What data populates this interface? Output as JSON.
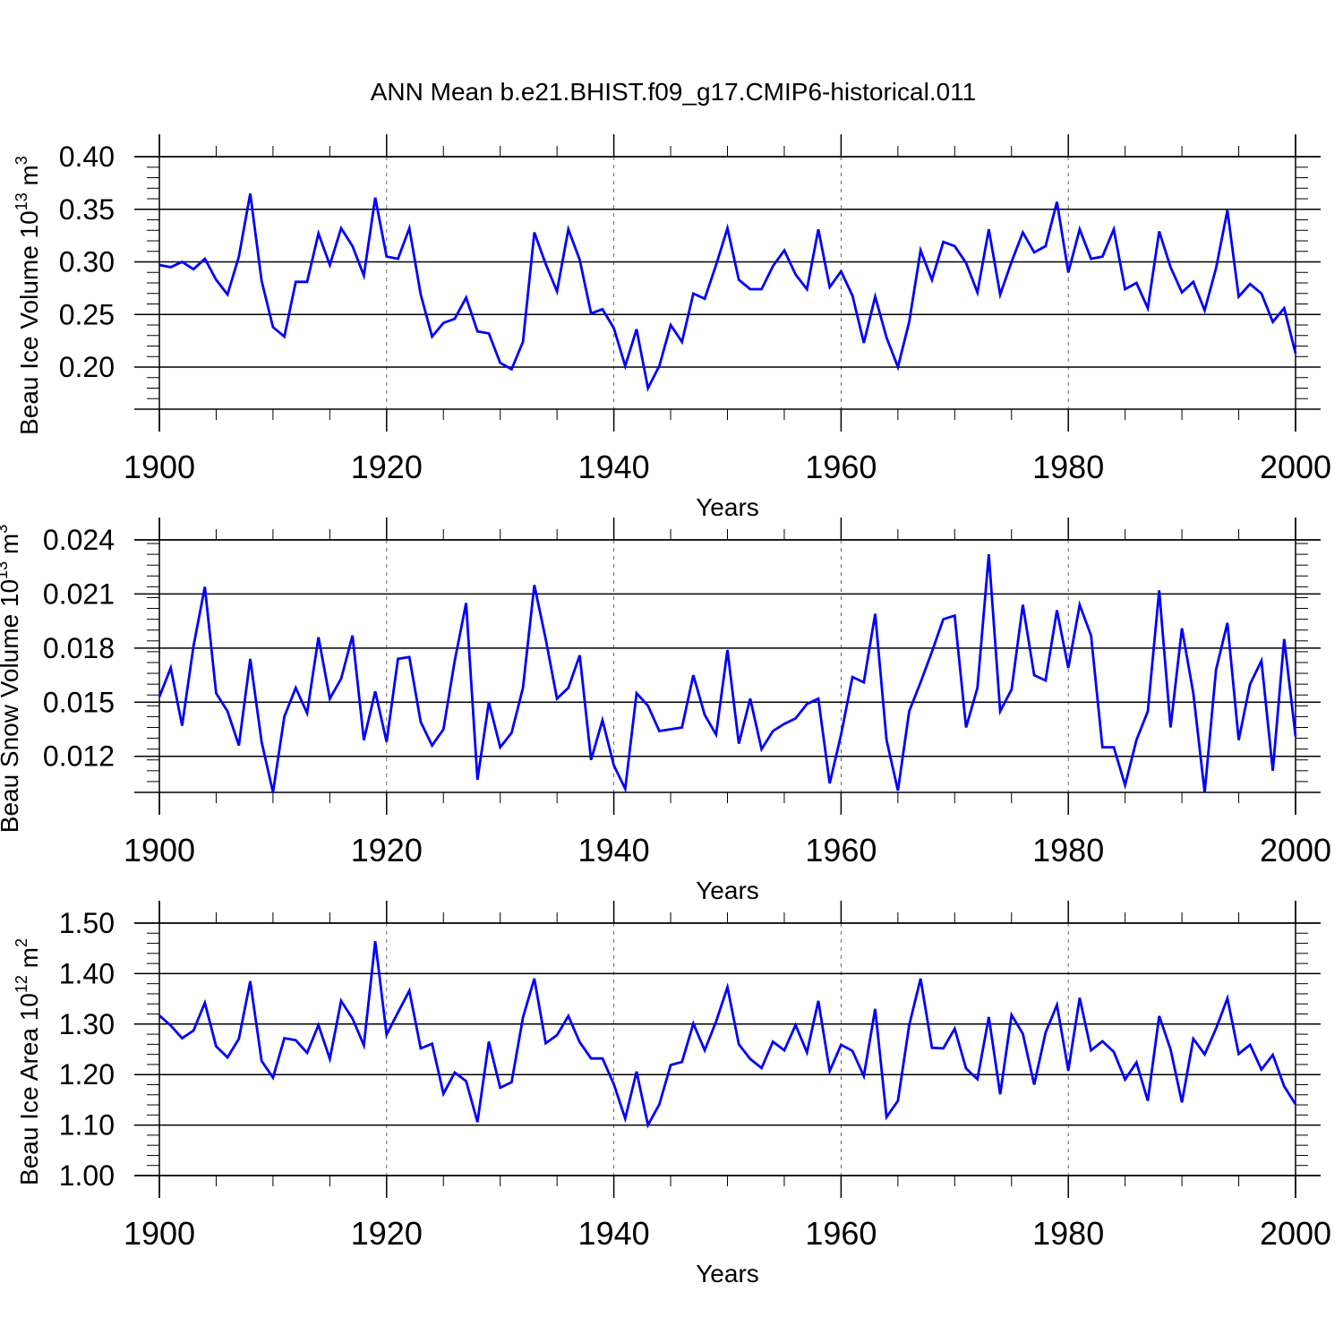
{
  "title": "ANN Mean b.e21.BHIST.f09_g17.CMIP6-historical.011",
  "chart_data": [
    {
      "type": "line",
      "xlabel": "Years",
      "ylabel": {
        "text": "Beau Ice Volume",
        "base": "10",
        "exponent": "13",
        "unit": "m",
        "unit_exponent": "3"
      },
      "x_range": [
        1900,
        2000
      ],
      "ylim": [
        0.16,
        0.4
      ],
      "x_ticks": [
        "1900",
        "1920",
        "1940",
        "1960",
        "1980",
        "2000"
      ],
      "y_ticks": [
        "0.40",
        "0.35",
        "0.30",
        "0.25",
        "0.20"
      ],
      "grid": "dashed vertical at 1920, 1940, 1960, 1980",
      "series_color": "#0000ff",
      "x_start": 1900,
      "values": [
        0.297,
        0.295,
        0.3,
        0.293,
        0.303,
        0.283,
        0.269,
        0.305,
        0.365,
        0.282,
        0.238,
        0.229,
        0.281,
        0.281,
        0.327,
        0.297,
        0.332,
        0.315,
        0.287,
        0.361,
        0.305,
        0.303,
        0.332,
        0.269,
        0.229,
        0.242,
        0.246,
        0.266,
        0.234,
        0.232,
        0.204,
        0.198,
        0.224,
        0.328,
        0.298,
        0.272,
        0.331,
        0.302,
        0.251,
        0.255,
        0.237,
        0.201,
        0.236,
        0.18,
        0.201,
        0.24,
        0.224,
        0.27,
        0.265,
        0.297,
        0.332,
        0.283,
        0.274,
        0.274,
        0.296,
        0.311,
        0.288,
        0.274,
        0.331,
        0.276,
        0.291,
        0.268,
        0.223,
        0.267,
        0.228,
        0.2,
        0.243,
        0.311,
        0.283,
        0.319,
        0.315,
        0.299,
        0.271,
        0.331,
        0.269,
        0.3,
        0.328,
        0.309,
        0.315,
        0.357,
        0.29,
        0.331,
        0.303,
        0.305,
        0.331,
        0.274,
        0.28,
        0.256,
        0.329,
        0.295,
        0.271,
        0.281,
        0.254,
        0.294,
        0.349,
        0.267,
        0.279,
        0.27,
        0.243,
        0.256,
        0.213
      ]
    },
    {
      "type": "line",
      "xlabel": "Years",
      "ylabel": {
        "text": "Beau Snow Volume",
        "base": "10",
        "exponent": "13",
        "unit": "m",
        "unit_exponent": "3"
      },
      "x_range": [
        1900,
        2000
      ],
      "ylim": [
        0.01,
        0.024
      ],
      "x_ticks": [
        "1900",
        "1920",
        "1940",
        "1960",
        "1980",
        "2000"
      ],
      "y_ticks": [
        "0.024",
        "0.021",
        "0.018",
        "0.015",
        "0.012"
      ],
      "grid": "dashed vertical at 1920, 1940, 1960, 1980",
      "series_color": "#0000ff",
      "x_start": 1900,
      "values": [
        0.0153,
        0.0169,
        0.0137,
        0.0181,
        0.0214,
        0.0155,
        0.0145,
        0.0126,
        0.0174,
        0.0128,
        0.01,
        0.0142,
        0.0158,
        0.0144,
        0.0186,
        0.0152,
        0.0163,
        0.0187,
        0.0129,
        0.0156,
        0.0128,
        0.0174,
        0.0175,
        0.0139,
        0.0126,
        0.0135,
        0.0173,
        0.0205,
        0.0107,
        0.015,
        0.0125,
        0.0133,
        0.0158,
        0.0215,
        0.0185,
        0.0152,
        0.0158,
        0.0176,
        0.0118,
        0.014,
        0.0115,
        0.0102,
        0.0155,
        0.0148,
        0.0134,
        0.0135,
        0.0136,
        0.0165,
        0.0143,
        0.0132,
        0.0179,
        0.0127,
        0.0152,
        0.0124,
        0.0134,
        0.0138,
        0.0141,
        0.0149,
        0.0152,
        0.0105,
        0.0132,
        0.0164,
        0.0161,
        0.0199,
        0.0129,
        0.0101,
        0.0145,
        0.0161,
        0.0178,
        0.0196,
        0.0198,
        0.0136,
        0.0158,
        0.0232,
        0.0145,
        0.0157,
        0.0204,
        0.0165,
        0.0162,
        0.0201,
        0.0169,
        0.0204,
        0.0187,
        0.0125,
        0.0125,
        0.0104,
        0.0129,
        0.0145,
        0.0212,
        0.0136,
        0.0191,
        0.0155,
        0.01,
        0.0168,
        0.0194,
        0.0129,
        0.016,
        0.0173,
        0.0112,
        0.0185,
        0.0131
      ]
    },
    {
      "type": "line",
      "xlabel": "Years",
      "ylabel": {
        "text": "Beau Ice Area",
        "base": "10",
        "exponent": "12",
        "unit": "m",
        "unit_exponent": "2"
      },
      "x_range": [
        1900,
        2000
      ],
      "ylim": [
        1.0,
        1.5
      ],
      "x_ticks": [
        "1900",
        "1920",
        "1940",
        "1960",
        "1980",
        "2000"
      ],
      "y_ticks": [
        "1.50",
        "1.40",
        "1.30",
        "1.20",
        "1.10",
        "1.00"
      ],
      "grid": "dashed vertical at 1920, 1940, 1960, 1980",
      "series_color": "#0000ff",
      "x_start": 1900,
      "values": [
        1.317,
        1.297,
        1.272,
        1.287,
        1.342,
        1.256,
        1.234,
        1.271,
        1.385,
        1.227,
        1.194,
        1.272,
        1.268,
        1.243,
        1.298,
        1.231,
        1.346,
        1.311,
        1.258,
        1.464,
        1.279,
        1.323,
        1.366,
        1.252,
        1.261,
        1.162,
        1.204,
        1.187,
        1.106,
        1.265,
        1.174,
        1.185,
        1.313,
        1.39,
        1.262,
        1.278,
        1.316,
        1.264,
        1.232,
        1.232,
        1.181,
        1.113,
        1.206,
        1.1,
        1.141,
        1.219,
        1.225,
        1.301,
        1.248,
        1.305,
        1.373,
        1.26,
        1.231,
        1.213,
        1.265,
        1.248,
        1.298,
        1.244,
        1.346,
        1.207,
        1.259,
        1.247,
        1.197,
        1.33,
        1.116,
        1.148,
        1.298,
        1.39,
        1.253,
        1.252,
        1.291,
        1.212,
        1.191,
        1.314,
        1.161,
        1.318,
        1.281,
        1.18,
        1.283,
        1.338,
        1.208,
        1.352,
        1.248,
        1.266,
        1.245,
        1.19,
        1.224,
        1.148,
        1.316,
        1.25,
        1.145,
        1.271,
        1.24,
        1.291,
        1.351,
        1.241,
        1.259,
        1.21,
        1.239,
        1.177,
        1.141
      ]
    }
  ]
}
